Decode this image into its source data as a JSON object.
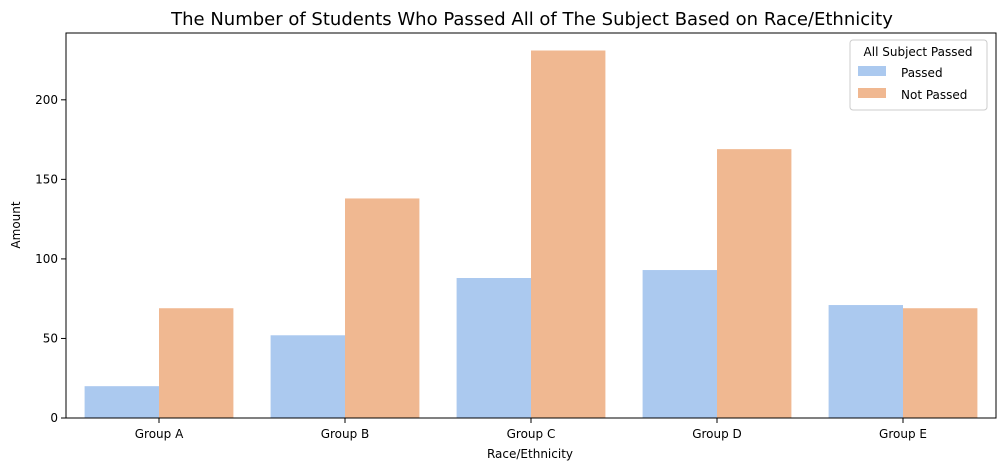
{
  "chart_data": {
    "type": "bar",
    "title": "The Number of Students Who Passed All of The Subject Based on Race/Ethnicity",
    "xlabel": "Race/Ethnicity",
    "ylabel": "Amount",
    "categories": [
      "Group A",
      "Group B",
      "Group C",
      "Group D",
      "Group E"
    ],
    "series": [
      {
        "name": "Passed",
        "color": "#abc9ef",
        "values": [
          20,
          52,
          88,
          93,
          71
        ]
      },
      {
        "name": "Not Passed",
        "color": "#f0b891",
        "values": [
          69,
          138,
          231,
          169,
          69
        ]
      }
    ],
    "ylim": [
      0,
      242
    ],
    "yticks": [
      0,
      50,
      100,
      150,
      200
    ],
    "grid": false,
    "legend": {
      "title": "All Subject Passed",
      "placement": "top-right"
    }
  }
}
